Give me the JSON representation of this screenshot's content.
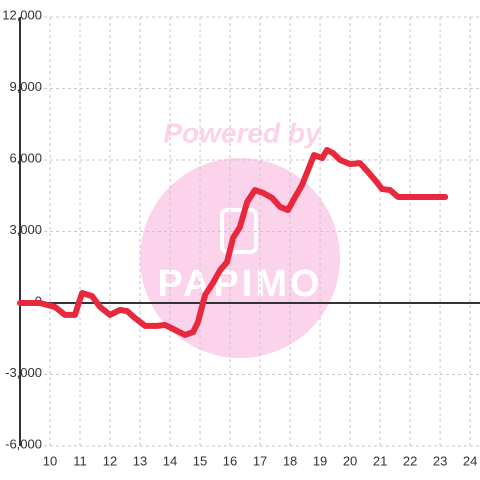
{
  "chart_data": {
    "type": "line",
    "annotations": [
      "Powered by",
      "PAPIMO"
    ],
    "x": [
      9,
      9.67,
      10.17,
      10.5,
      10.83,
      11.07,
      11.4,
      11.67,
      12,
      12.33,
      12.57,
      12.83,
      13.17,
      13.57,
      13.83,
      14.17,
      14.5,
      14.77,
      14.93,
      15.17,
      15.43,
      15.67,
      15.9,
      16.1,
      16.33,
      16.57,
      16.83,
      17.1,
      17.4,
      17.67,
      17.93,
      18.17,
      18.4,
      18.6,
      18.8,
      19.07,
      19.23,
      19.43,
      19.67,
      20,
      20.33,
      20.6,
      20.83,
      21.07,
      21.33,
      21.6,
      23.17
    ],
    "values": [
      0,
      0,
      -170,
      -500,
      -500,
      420,
      290,
      -170,
      -500,
      -290,
      -340,
      -630,
      -960,
      -960,
      -920,
      -1130,
      -1340,
      -1220,
      -800,
      340,
      840,
      1380,
      1720,
      2730,
      3190,
      4240,
      4740,
      4620,
      4410,
      4030,
      3900,
      4450,
      4950,
      5580,
      6210,
      6080,
      6420,
      6290,
      6000,
      5830,
      5870,
      5500,
      5160,
      4780,
      4740,
      4450,
      4450
    ],
    "color": "#e8283c",
    "xlim": [
      9,
      24.33
    ],
    "ylim": [
      -6000,
      12000
    ],
    "xticks": [
      10,
      11,
      12,
      13,
      14,
      15,
      16,
      17,
      18,
      19,
      20,
      21,
      22,
      23,
      24
    ],
    "yticks": [
      {
        "value": -6000,
        "label": "-6,000"
      },
      {
        "value": -3000,
        "label": "-3,000"
      },
      0,
      {
        "value": 3000,
        "label": "3,000"
      },
      {
        "value": 6000,
        "label": "6,000"
      },
      {
        "value": 9000,
        "label": "9,000"
      },
      {
        "value": 12000,
        "label": "12,000"
      }
    ],
    "grid": true
  }
}
